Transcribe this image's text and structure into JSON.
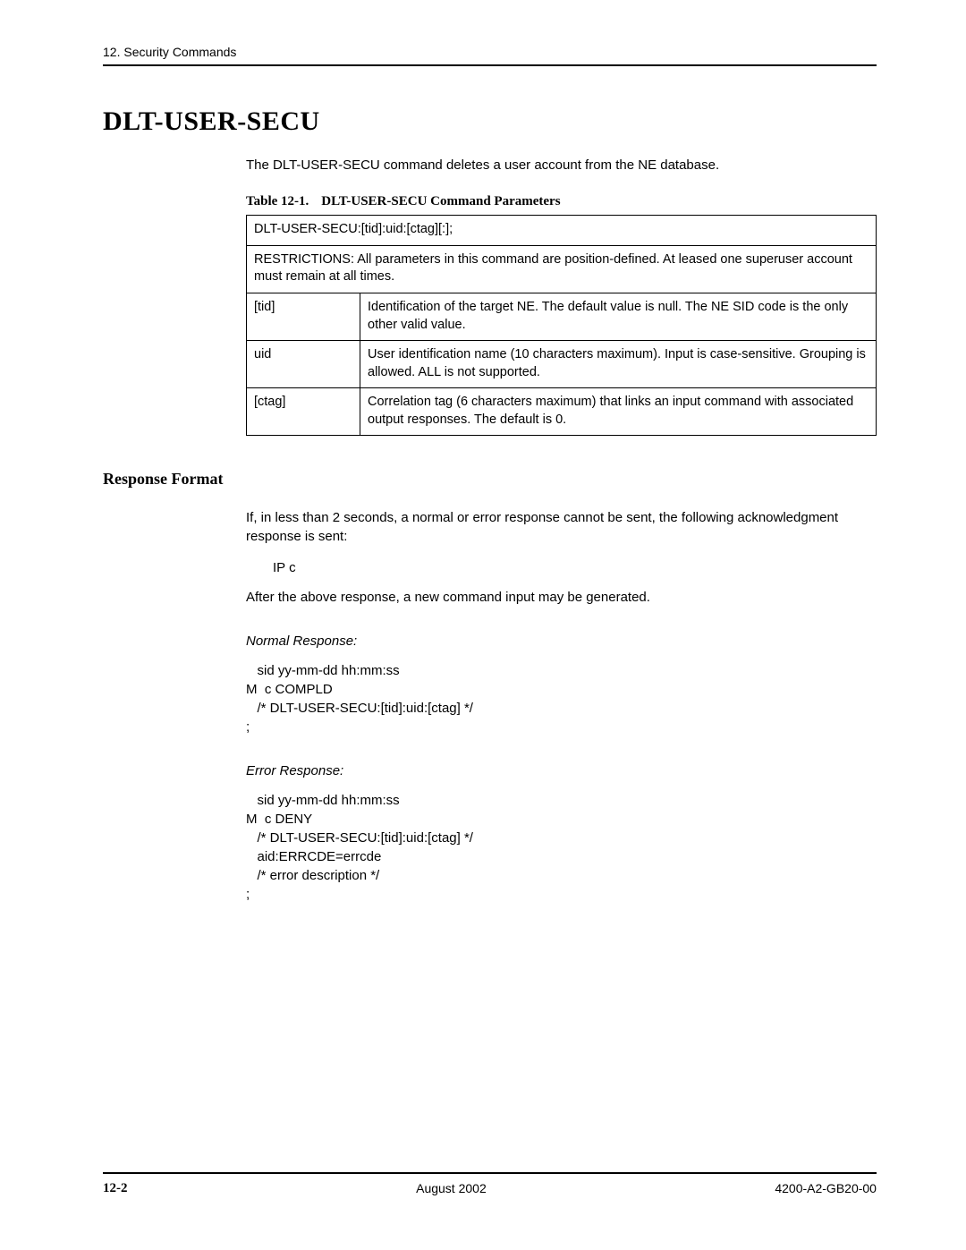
{
  "header": {
    "running_head": "12. Security Commands"
  },
  "title": "DLT-USER-SECU",
  "intro": "The DLT-USER-SECU command deletes a user account from the NE database.",
  "table": {
    "caption_prefix": "Table 12-1.",
    "caption_title": "DLT-USER-SECU Command Parameters",
    "syntax": "DLT-USER-SECU:[tid]:uid:[ctag][:];",
    "restrictions": "RESTRICTIONS: All parameters in this command are position-defined. At leased one superuser account must remain at all times.",
    "rows": [
      {
        "name": "[tid]",
        "desc": "Identification of the target NE. The default value is null. The NE SID code is the only other valid value."
      },
      {
        "name": "uid",
        "desc": "User identification name (10 characters maximum). Input is case-sensitive. Grouping is allowed. ALL is not supported."
      },
      {
        "name": "[ctag]",
        "desc": "Correlation tag (6 characters maximum) that links an input command with associated output responses. The default is 0."
      }
    ]
  },
  "response": {
    "heading": "Response Format",
    "ack_text": "If, in less than 2 seconds, a normal or error response cannot be sent, the following acknowledgment response is sent:",
    "ack_code": "IP c",
    "after_ack": "After the above response, a new command input may be generated.",
    "normal_label": "Normal Response:",
    "normal_code": "   sid yy-mm-dd hh:mm:ss\nM  c COMPLD\n   /* DLT-USER-SECU:[tid]:uid:[ctag] */\n;",
    "error_label": "Error Response:",
    "error_code": "   sid yy-mm-dd hh:mm:ss\nM  c DENY\n   /* DLT-USER-SECU:[tid]:uid:[ctag] */\n   aid:ERRCDE=errcde\n   /* error description */\n;"
  },
  "footer": {
    "page": "12-2",
    "date": "August 2002",
    "docnum": "4200-A2-GB20-00"
  }
}
